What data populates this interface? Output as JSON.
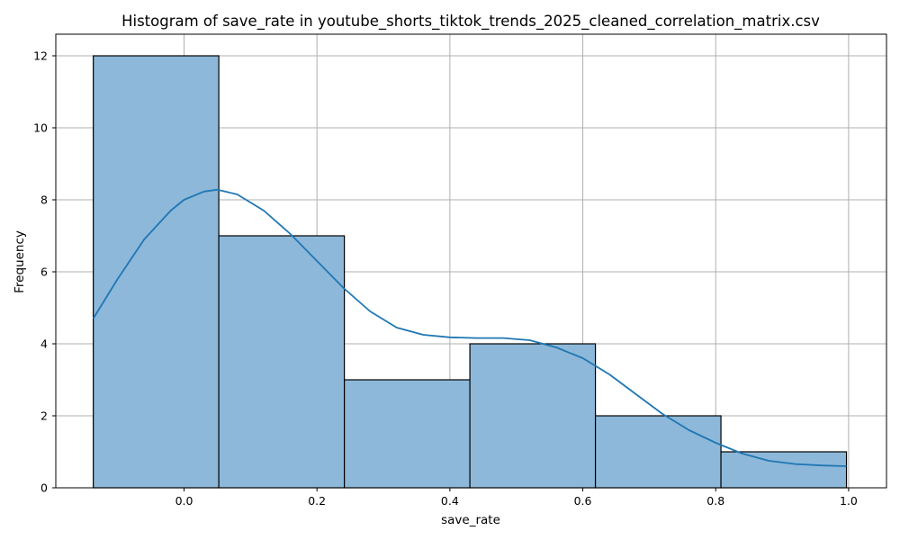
{
  "chart_data": {
    "type": "bar",
    "subtype": "histogram with kde line",
    "title": "Histogram of save_rate in youtube_shorts_tiktok_trends_2025_cleaned_correlation_matrix.csv",
    "xlabel": "save_rate",
    "ylabel": "Frequency",
    "xlim": [
      -0.193,
      1.057
    ],
    "ylim": [
      0,
      12.6
    ],
    "xticks": [
      0.0,
      0.2,
      0.4,
      0.6,
      0.8,
      1.0
    ],
    "xtick_labels": [
      "0.0",
      "0.2",
      "0.4",
      "0.6",
      "0.8",
      "1.0"
    ],
    "yticks": [
      0,
      2,
      4,
      6,
      8,
      10,
      12
    ],
    "ytick_labels": [
      "0",
      "2",
      "4",
      "6",
      "8",
      "10",
      "12"
    ],
    "grid": true,
    "bin_edges": [
      -0.1366,
      0.0523,
      0.2412,
      0.4301,
      0.619,
      0.8079,
      0.9968
    ],
    "values": [
      12,
      7,
      3,
      4,
      2,
      1
    ],
    "bar_color": "#8db8d9",
    "bar_edge_color": "#000000",
    "kde": {
      "color": "#1f77b4",
      "x": [
        -0.1366,
        -0.1,
        -0.06,
        -0.02,
        0.0,
        0.03,
        0.05,
        0.08,
        0.12,
        0.16,
        0.2,
        0.24,
        0.28,
        0.32,
        0.36,
        0.4,
        0.44,
        0.48,
        0.52,
        0.56,
        0.6,
        0.64,
        0.68,
        0.72,
        0.76,
        0.8,
        0.84,
        0.88,
        0.92,
        0.96,
        0.9968
      ],
      "y": [
        4.7,
        5.8,
        6.9,
        7.7,
        8.0,
        8.23,
        8.28,
        8.15,
        7.7,
        7.05,
        6.3,
        5.55,
        4.9,
        4.45,
        4.25,
        4.18,
        4.16,
        4.16,
        4.1,
        3.9,
        3.6,
        3.15,
        2.6,
        2.05,
        1.6,
        1.25,
        0.95,
        0.75,
        0.66,
        0.62,
        0.6
      ]
    }
  }
}
